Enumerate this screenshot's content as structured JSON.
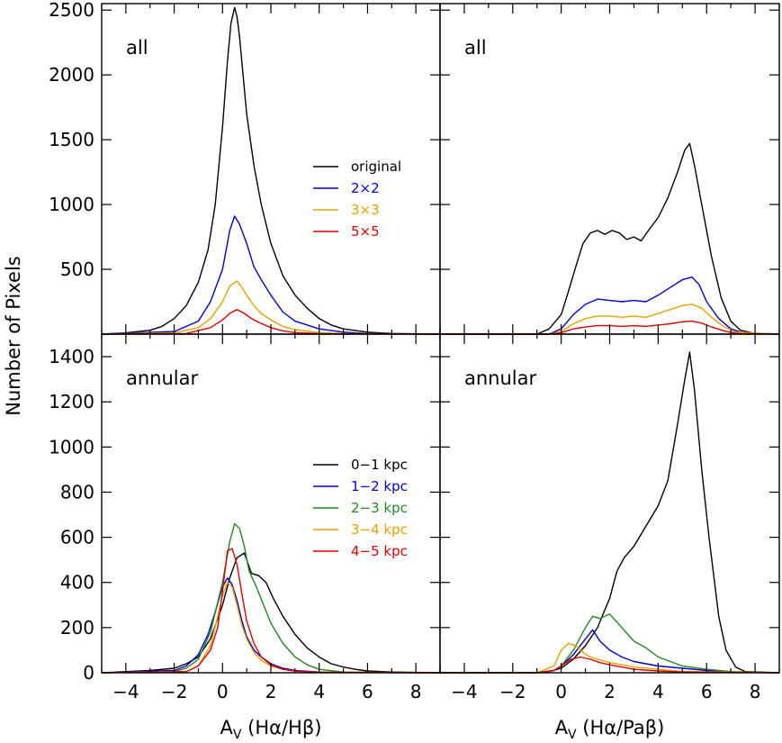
{
  "figure": {
    "ylabel": "Number of Pixels"
  },
  "chart_data": [
    {
      "id": "tl",
      "type": "line",
      "panel_label": "all",
      "xlabel": "",
      "ylabel": "Number of Pixels",
      "xlim": [
        -5,
        9
      ],
      "ylim": [
        0,
        2550
      ],
      "xticks": [
        -4,
        -2,
        0,
        2,
        4,
        6,
        8
      ],
      "yticks": [
        500,
        1000,
        1500,
        2000,
        2500
      ],
      "ytick_labels": [
        "500",
        "1000",
        "1500",
        "2000",
        "2500"
      ],
      "xtick_labels": [],
      "legend": true,
      "series": [
        {
          "name": "original",
          "color": "#000000",
          "x": [
            -5,
            -4,
            -3,
            -2.5,
            -2,
            -1.5,
            -1,
            -0.6,
            -0.3,
            0,
            0.2,
            0.35,
            0.5,
            0.6,
            0.7,
            0.85,
            1,
            1.3,
            1.6,
            2,
            2.5,
            3,
            3.5,
            4,
            4.5,
            5,
            6,
            7,
            9
          ],
          "y": [
            0,
            10,
            30,
            60,
            120,
            220,
            400,
            650,
            1000,
            1600,
            2100,
            2400,
            2520,
            2450,
            2300,
            2000,
            1700,
            1300,
            1000,
            700,
            450,
            300,
            200,
            120,
            70,
            40,
            15,
            5,
            0
          ]
        },
        {
          "name": "2×2",
          "color": "#0000cc",
          "x": [
            -5,
            -2,
            -1,
            -0.5,
            0,
            0.3,
            0.5,
            0.7,
            1,
            1.3,
            1.6,
            2,
            2.5,
            3,
            4,
            5,
            6,
            9
          ],
          "y": [
            0,
            20,
            100,
            250,
            500,
            800,
            910,
            850,
            700,
            520,
            420,
            300,
            170,
            100,
            40,
            15,
            5,
            0
          ]
        },
        {
          "name": "3×3",
          "color": "#e6a000",
          "x": [
            -5,
            -2,
            -1,
            -0.5,
            0,
            0.3,
            0.6,
            0.8,
            1,
            1.3,
            1.6,
            2,
            2.5,
            3,
            4,
            5,
            9
          ],
          "y": [
            0,
            10,
            50,
            120,
            250,
            370,
            410,
            360,
            300,
            220,
            160,
            110,
            60,
            35,
            12,
            5,
            0
          ]
        },
        {
          "name": "5×5",
          "color": "#dd0000",
          "x": [
            -5,
            -1.5,
            -0.5,
            0,
            0.3,
            0.6,
            0.9,
            1.2,
            1.5,
            2,
            2.5,
            3,
            4,
            9
          ],
          "y": [
            0,
            5,
            50,
            110,
            160,
            190,
            160,
            120,
            90,
            50,
            25,
            12,
            4,
            0
          ]
        }
      ]
    },
    {
      "id": "tr",
      "type": "line",
      "panel_label": "all",
      "xlabel": "",
      "ylabel": "",
      "xlim": [
        -5,
        9
      ],
      "ylim": [
        0,
        2550
      ],
      "xticks": [
        -4,
        -2,
        0,
        2,
        4,
        6,
        8
      ],
      "yticks": [
        500,
        1000,
        1500,
        2000,
        2500
      ],
      "ytick_labels": [],
      "xtick_labels": [],
      "legend": false,
      "series": [
        {
          "name": "original",
          "color": "#000000",
          "x": [
            -5,
            -1,
            -0.5,
            0,
            0.3,
            0.6,
            0.9,
            1.2,
            1.5,
            1.8,
            2.1,
            2.4,
            2.7,
            3,
            3.3,
            3.6,
            4,
            4.4,
            4.8,
            5.1,
            5.3,
            5.5,
            5.8,
            6.2,
            6.6,
            7,
            7.4,
            8,
            9
          ],
          "y": [
            0,
            0,
            40,
            150,
            330,
            520,
            700,
            780,
            800,
            770,
            800,
            780,
            730,
            750,
            720,
            800,
            900,
            1050,
            1250,
            1420,
            1470,
            1300,
            1000,
            600,
            280,
            100,
            30,
            5,
            0
          ]
        },
        {
          "name": "2×2",
          "color": "#0000cc",
          "x": [
            -5,
            -0.5,
            0,
            0.5,
            1,
            1.5,
            2,
            2.5,
            3,
            3.5,
            4,
            4.5,
            5,
            5.4,
            5.7,
            6,
            6.5,
            7,
            7.5,
            9
          ],
          "y": [
            0,
            0,
            40,
            150,
            230,
            270,
            260,
            250,
            260,
            250,
            300,
            360,
            420,
            440,
            380,
            250,
            120,
            40,
            10,
            0
          ]
        },
        {
          "name": "3×3",
          "color": "#e6a000",
          "x": [
            -5,
            -0.5,
            0,
            0.5,
            1,
            1.5,
            2,
            2.5,
            3,
            3.5,
            4,
            4.5,
            5,
            5.4,
            5.8,
            6.2,
            6.7,
            7.2,
            9
          ],
          "y": [
            0,
            0,
            20,
            80,
            120,
            140,
            140,
            130,
            140,
            130,
            160,
            190,
            220,
            230,
            200,
            130,
            60,
            15,
            0
          ]
        },
        {
          "name": "5×5",
          "color": "#dd0000",
          "x": [
            -5,
            -0.5,
            0,
            0.5,
            1,
            1.5,
            2,
            2.5,
            3,
            3.5,
            4,
            4.5,
            5,
            5.4,
            5.8,
            6.2,
            6.8,
            7.3,
            9
          ],
          "y": [
            0,
            0,
            10,
            40,
            55,
            65,
            65,
            60,
            65,
            60,
            70,
            80,
            95,
            100,
            85,
            55,
            20,
            5,
            0
          ]
        }
      ]
    },
    {
      "id": "bl",
      "type": "line",
      "panel_label": "annular",
      "xlabel": "A<sub>V</sub> (Hα/Hβ)",
      "ylabel": "Number of Pixels",
      "xlim": [
        -5,
        9
      ],
      "ylim": [
        0,
        1500
      ],
      "xticks": [
        -4,
        -2,
        0,
        2,
        4,
        6,
        8
      ],
      "yticks": [
        0,
        200,
        400,
        600,
        800,
        1000,
        1200,
        1400
      ],
      "ytick_labels": [
        "0",
        "200",
        "400",
        "600",
        "800",
        "1000",
        "1200",
        "1400"
      ],
      "xtick_labels": [
        "−4",
        "−2",
        "0",
        "2",
        "4",
        "6",
        "8"
      ],
      "legend": true,
      "series": [
        {
          "name": "0−1 kpc",
          "color": "#000000",
          "x": [
            -5,
            -3,
            -2,
            -1.5,
            -1,
            -0.5,
            0,
            0.3,
            0.6,
            0.9,
            1.2,
            1.5,
            1.8,
            2.1,
            2.5,
            3,
            3.5,
            4,
            4.5,
            5,
            5.5,
            6,
            7,
            9
          ],
          "y": [
            0,
            10,
            20,
            40,
            70,
            150,
            300,
            420,
            510,
            530,
            440,
            430,
            400,
            330,
            250,
            170,
            110,
            70,
            40,
            25,
            15,
            8,
            3,
            0
          ]
        },
        {
          "name": "1−2 kpc",
          "color": "#0000cc",
          "x": [
            -5,
            -2,
            -1.5,
            -1,
            -0.6,
            -0.3,
            0,
            0.2,
            0.4,
            0.6,
            0.8,
            1,
            1.3,
            1.6,
            2,
            2.5,
            3,
            4,
            5,
            9
          ],
          "y": [
            0,
            10,
            30,
            80,
            170,
            270,
            380,
            420,
            390,
            320,
            230,
            160,
            100,
            70,
            40,
            20,
            10,
            3,
            1,
            0
          ]
        },
        {
          "name": "2−3 kpc",
          "color": "#228822",
          "x": [
            -5,
            -2,
            -1.5,
            -1,
            -0.5,
            0,
            0.3,
            0.5,
            0.7,
            0.9,
            1.1,
            1.4,
            1.7,
            2,
            2.5,
            3,
            3.5,
            4,
            5,
            9
          ],
          "y": [
            0,
            5,
            20,
            60,
            180,
            400,
            580,
            660,
            640,
            560,
            450,
            380,
            300,
            220,
            130,
            70,
            35,
            15,
            3,
            0
          ]
        },
        {
          "name": "3−4 kpc",
          "color": "#e6a000",
          "x": [
            -5,
            -1.5,
            -1,
            -0.5,
            -0.2,
            0,
            0.2,
            0.4,
            0.6,
            0.8,
            1,
            1.3,
            1.6,
            2,
            2.5,
            3,
            4,
            9
          ],
          "y": [
            0,
            5,
            30,
            120,
            250,
            340,
            400,
            380,
            300,
            210,
            150,
            90,
            55,
            30,
            15,
            7,
            2,
            0
          ]
        },
        {
          "name": "4−5 kpc",
          "color": "#dd0000",
          "x": [
            -5,
            -1.5,
            -1,
            -0.5,
            -0.2,
            0,
            0.2,
            0.4,
            0.6,
            0.8,
            1,
            1.3,
            1.6,
            2,
            2.5,
            3,
            4,
            9
          ],
          "y": [
            0,
            5,
            30,
            100,
            200,
            360,
            540,
            550,
            480,
            350,
            230,
            130,
            70,
            35,
            15,
            7,
            2,
            0
          ]
        }
      ]
    },
    {
      "id": "br",
      "type": "line",
      "panel_label": "annular",
      "xlabel": "A<sub>V</sub> (Hα/Paβ)",
      "ylabel": "",
      "xlim": [
        -5,
        9
      ],
      "ylim": [
        0,
        1500
      ],
      "xticks": [
        -4,
        -2,
        0,
        2,
        4,
        6,
        8
      ],
      "yticks": [
        0,
        200,
        400,
        600,
        800,
        1000,
        1200,
        1400
      ],
      "ytick_labels": [],
      "xtick_labels": [
        "−4",
        "−2",
        "0",
        "2",
        "4",
        "6",
        "8"
      ],
      "legend": false,
      "series": [
        {
          "name": "0−1 kpc",
          "color": "#000000",
          "x": [
            -5,
            -1,
            -0.5,
            0,
            0.5,
            1,
            1.5,
            2,
            2.3,
            2.6,
            3,
            3.5,
            4,
            4.4,
            4.8,
            5.1,
            5.3,
            5.5,
            5.8,
            6.1,
            6.5,
            6.8,
            7.2,
            7.6,
            9
          ],
          "y": [
            0,
            0,
            5,
            20,
            60,
            120,
            200,
            330,
            450,
            510,
            560,
            650,
            740,
            850,
            1100,
            1300,
            1420,
            1250,
            900,
            600,
            250,
            100,
            25,
            5,
            0
          ]
        },
        {
          "name": "1−2 kpc",
          "color": "#0000cc",
          "x": [
            -5,
            -1,
            -0.3,
            0,
            0.5,
            1,
            1.3,
            1.6,
            2,
            2.5,
            3,
            3.5,
            4,
            5,
            6,
            7,
            9
          ],
          "y": [
            0,
            0,
            10,
            30,
            80,
            150,
            190,
            140,
            100,
            70,
            50,
            40,
            30,
            20,
            10,
            3,
            0
          ]
        },
        {
          "name": "2−3 kpc",
          "color": "#228822",
          "x": [
            -5,
            -1,
            -0.3,
            0,
            0.5,
            1,
            1.3,
            1.6,
            2,
            2.5,
            3,
            3.5,
            4,
            4.5,
            5,
            6,
            7,
            9
          ],
          "y": [
            0,
            0,
            10,
            30,
            100,
            200,
            250,
            240,
            260,
            200,
            140,
            110,
            70,
            50,
            30,
            15,
            5,
            0
          ]
        },
        {
          "name": "3−4 kpc",
          "color": "#e6a000",
          "x": [
            -5,
            -1,
            -0.3,
            0,
            0.3,
            0.6,
            0.9,
            1.2,
            1.5,
            2,
            2.5,
            3,
            4,
            5,
            9
          ],
          "y": [
            0,
            0,
            30,
            100,
            130,
            120,
            90,
            70,
            60,
            45,
            35,
            25,
            15,
            5,
            0
          ]
        },
        {
          "name": "4−5 kpc",
          "color": "#dd0000",
          "x": [
            -5,
            -1,
            -0.3,
            0,
            0.4,
            0.8,
            1.2,
            1.6,
            2,
            2.5,
            3,
            4,
            5,
            9
          ],
          "y": [
            0,
            0,
            10,
            30,
            60,
            70,
            60,
            45,
            35,
            25,
            15,
            8,
            3,
            0
          ]
        }
      ]
    }
  ]
}
